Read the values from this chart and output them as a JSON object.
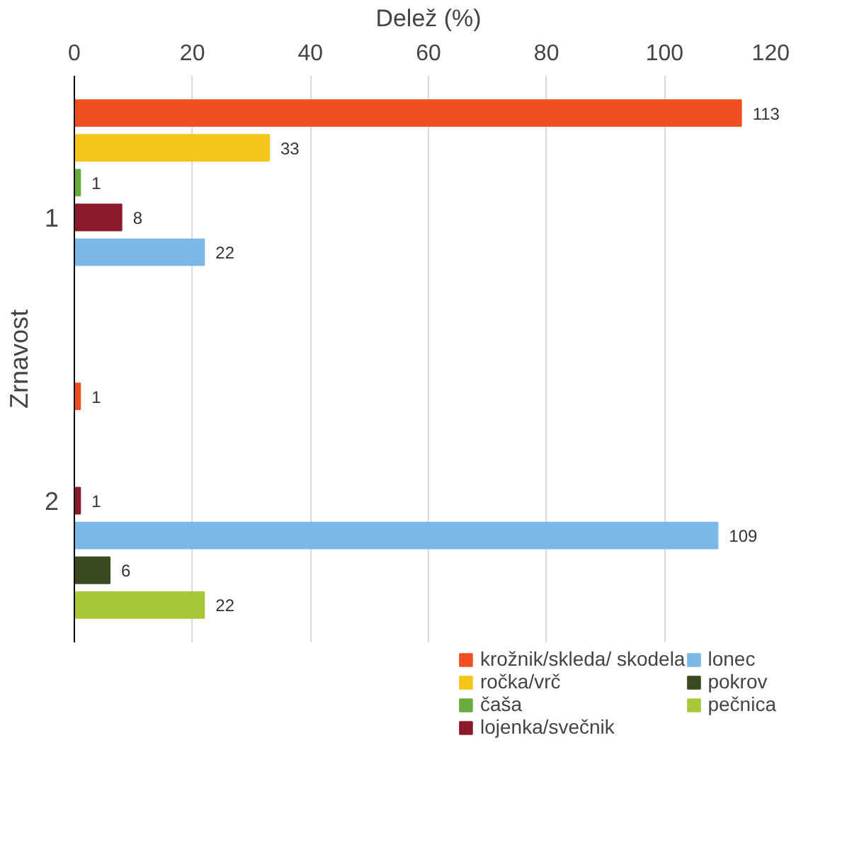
{
  "chart_data": {
    "type": "bar",
    "orientation": "horizontal",
    "xlabel": "Delež (%)",
    "ylabel": "Zrnavost",
    "categories": [
      "1",
      "2"
    ],
    "xlim": [
      0,
      120
    ],
    "xticks": [
      0,
      20,
      40,
      60,
      80,
      100,
      120
    ],
    "grid": "x",
    "legend": "bottom",
    "data_labels": true,
    "series": [
      {
        "name": "krožnik/skleda/ skodela",
        "color": "#f04e23",
        "values": [
          113,
          1
        ]
      },
      {
        "name": "ročka/vrč",
        "color": "#f5c518",
        "values": [
          33,
          null
        ]
      },
      {
        "name": "čaša",
        "color": "#6aab3e",
        "values": [
          1,
          null
        ]
      },
      {
        "name": "lojenka/svečnik",
        "color": "#8b1a2b",
        "values": [
          8,
          1
        ]
      },
      {
        "name": "lonec",
        "color": "#7ab8e8",
        "values": [
          22,
          109
        ]
      },
      {
        "name": "pokrov",
        "color": "#3a4a1e",
        "values": [
          null,
          6
        ]
      },
      {
        "name": "pečnica",
        "color": "#a8c83a",
        "values": [
          null,
          22
        ]
      }
    ]
  }
}
